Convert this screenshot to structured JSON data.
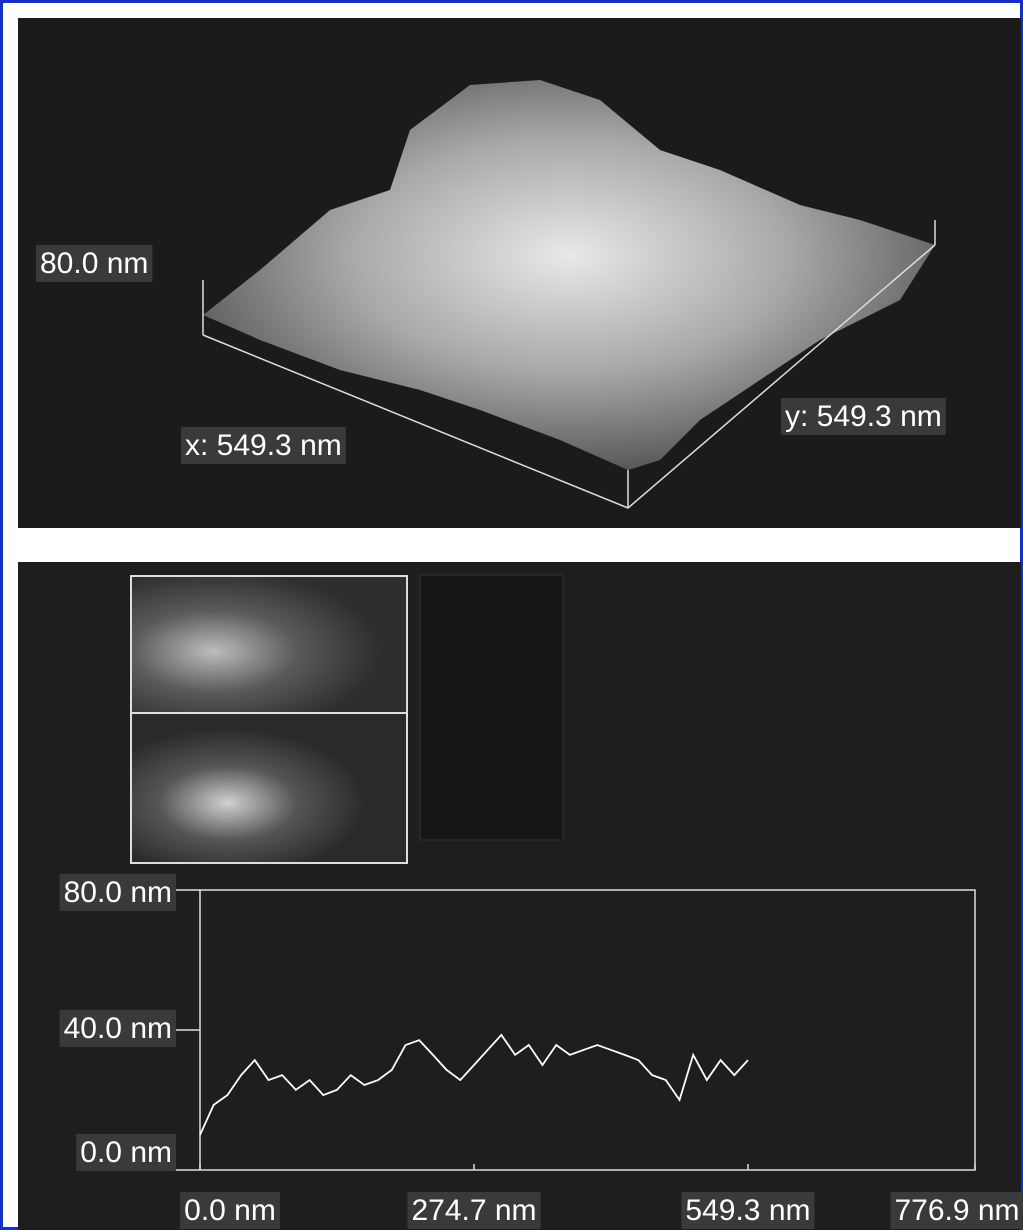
{
  "panel_3d": {
    "z_label": "80.0 nm",
    "x_label": "x: 549.3 nm",
    "y_label": "y: 549.3 nm"
  },
  "chart_data": {
    "type": "line",
    "x": [
      0,
      13.7,
      27.5,
      41.2,
      54.9,
      68.7,
      82.4,
      96.1,
      109.9,
      123.6,
      137.3,
      151.1,
      164.8,
      178.5,
      192.3,
      206.0,
      219.7,
      233.5,
      247.2,
      260.9,
      274.7,
      288.4,
      302.1,
      315.9,
      329.6,
      343.3,
      357.1,
      370.8,
      384.5,
      398.3,
      412.0,
      425.7,
      439.5,
      453.2,
      466.9,
      480.7,
      494.4,
      508.1,
      521.9,
      535.6,
      549.3
    ],
    "series": [
      {
        "color": "#ffffff",
        "values": [
          10.0,
          18.6,
          21.4,
          27.1,
          31.4,
          25.7,
          27.1,
          22.9,
          25.7,
          21.4,
          22.9,
          27.1,
          24.3,
          25.7,
          28.6,
          35.7,
          37.1,
          32.9,
          28.6,
          25.7,
          30.0,
          34.3,
          38.6,
          32.9,
          35.7,
          30.0,
          35.7,
          32.9,
          34.3,
          35.7,
          34.3,
          32.9,
          31.4,
          27.1,
          25.7,
          20.0,
          32.9,
          25.7,
          31.4,
          27.1,
          31.4
        ]
      }
    ],
    "xlim": [
      0,
      776.9
    ],
    "xticks": [
      {
        "value": 0,
        "label": "0.0 nm"
      },
      {
        "value": 274.7,
        "label": "274.7 nm"
      },
      {
        "value": 549.3,
        "label": "549.3 nm"
      },
      {
        "value": 776.9,
        "label": "776.9 nm"
      }
    ],
    "ylim": [
      0,
      80
    ],
    "yticks": [
      {
        "value": 0,
        "label": "0.0 nm"
      },
      {
        "value": 40,
        "label": "40.0 nm"
      },
      {
        "value": 80,
        "label": "80.0 nm"
      }
    ]
  }
}
